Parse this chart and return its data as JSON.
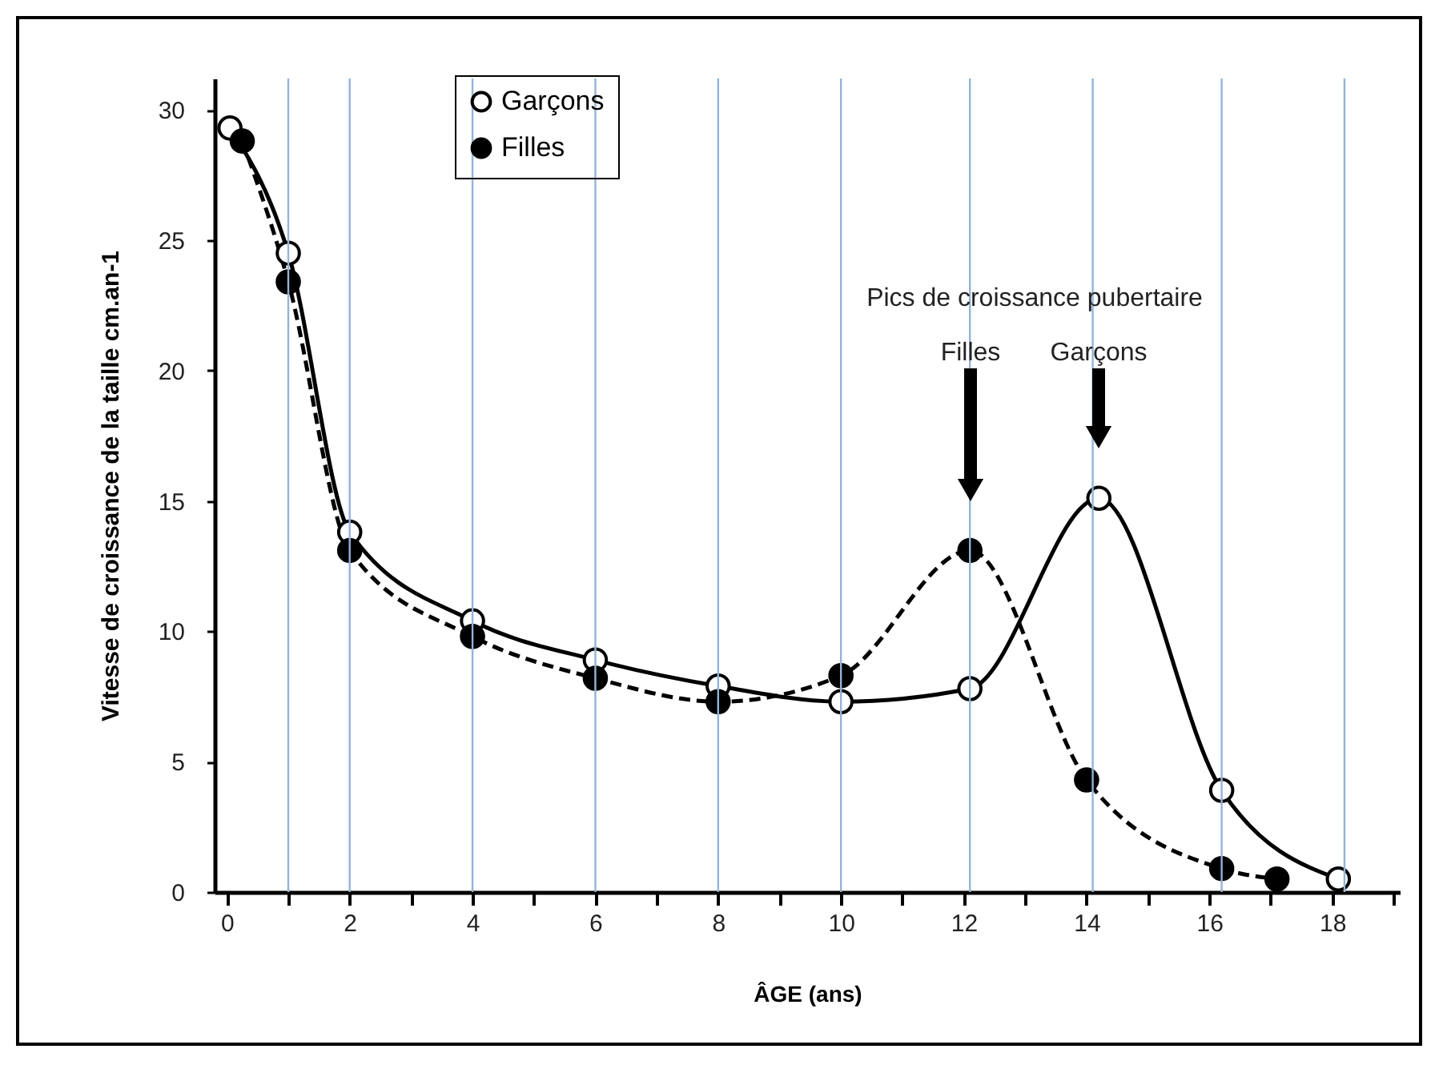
{
  "chart_data": {
    "type": "line",
    "xlabel": "ÂGE (ans)",
    "ylabel": "Vitesse de croissance de la taille cm.an-1",
    "xlim": [
      -0.2,
      19.1
    ],
    "ylim": [
      0,
      31.2
    ],
    "xticks": [
      0,
      {
        "value": 1,
        "label": null
      },
      2,
      {
        "value": 3,
        "label": null
      },
      4,
      {
        "value": 5,
        "label": null
      },
      6,
      {
        "value": 7,
        "label": null
      },
      8,
      {
        "value": 9,
        "label": null
      },
      10,
      {
        "value": 11,
        "label": null
      },
      12,
      {
        "value": 13,
        "label": null
      },
      14,
      {
        "value": 15,
        "label": null
      },
      16,
      {
        "value": 17,
        "label": null
      },
      18,
      {
        "value": 19,
        "label": null
      }
    ],
    "yticks": [
      0,
      5,
      10,
      15,
      20,
      25,
      30
    ],
    "grid": false,
    "legend": "top",
    "marker": "circle",
    "series": [
      {
        "name": "Garçons",
        "color": "#000000",
        "line_style": "solid",
        "x": [
          0.05,
          1,
          2,
          4,
          6,
          8,
          10,
          12.1,
          14.2,
          16.2,
          18.1
        ],
        "values": [
          29.3,
          24.5,
          13.8,
          10.4,
          8.9,
          7.9,
          7.3,
          7.8,
          15.1,
          3.9,
          0.5
        ]
      },
      {
        "name": "Filles",
        "color": "#000000",
        "line_style": "dashed",
        "x": [
          0.25,
          1,
          2,
          4,
          6,
          8,
          10,
          12.1,
          14,
          16.2,
          17.1
        ],
        "values": [
          28.8,
          23.4,
          13.1,
          9.8,
          8.2,
          7.3,
          8.3,
          13.1,
          4.3,
          0.9,
          0.5
        ]
      }
    ],
    "ref_lines": [
      {
        "axis": "x",
        "value": 1,
        "color": "#95b3d7"
      },
      {
        "axis": "x",
        "value": 2,
        "color": "#95b3d7"
      },
      {
        "axis": "x",
        "value": 4,
        "color": "#95b3d7"
      },
      {
        "axis": "x",
        "value": 6,
        "color": "#95b3d7"
      },
      {
        "axis": "x",
        "value": 8,
        "color": "#95b3d7"
      },
      {
        "axis": "x",
        "value": 10,
        "color": "#95b3d7"
      },
      {
        "axis": "x",
        "value": 12.1,
        "color": "#95b3d7"
      },
      {
        "axis": "x",
        "value": 14.1,
        "color": "#95b3d7"
      },
      {
        "axis": "x",
        "value": 16.2,
        "color": "#95b3d7"
      },
      {
        "axis": "x",
        "value": 18.2,
        "color": "#95b3d7"
      }
    ],
    "annotations": [
      "Pics de croissance pubertaire",
      "Filles",
      "Garçons"
    ]
  }
}
